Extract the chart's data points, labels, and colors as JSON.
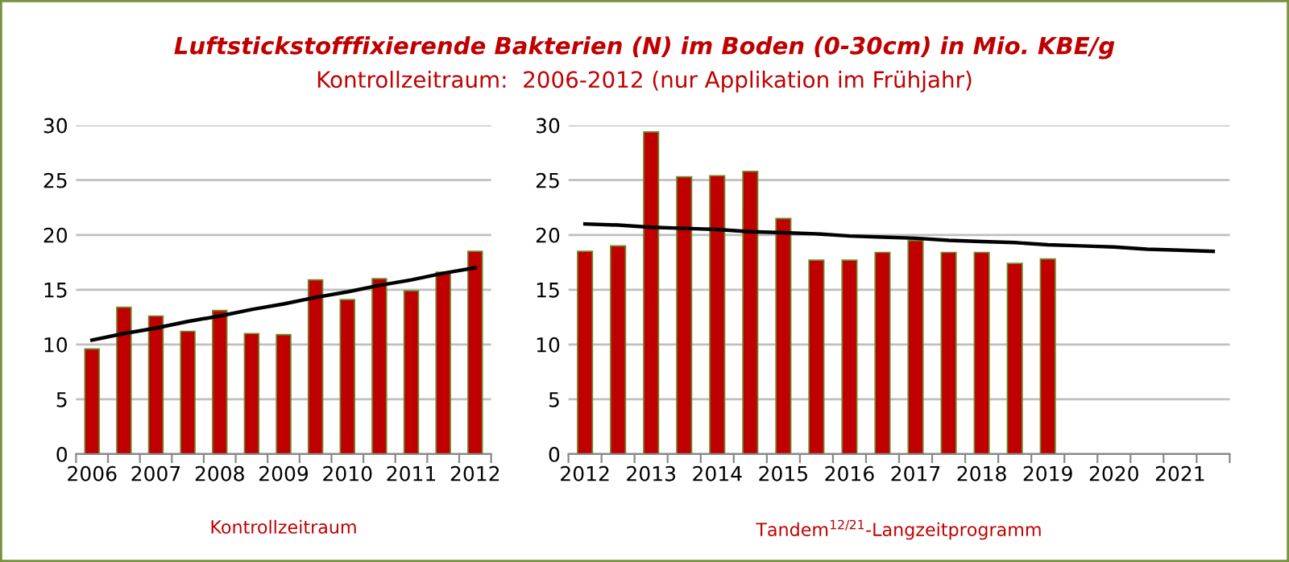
{
  "chart_data": [
    {
      "type": "bar",
      "title": "Luftstickstofffixierende Bakterien (N) im Boden (0-30cm) in Mio. KBE/g",
      "subtitle": "Kontrollzeitraum:  2006-2012 (nur Applikation im Frühjahr)",
      "xlabel": "Kontrollzeitraum",
      "categories": [
        "2006",
        null,
        "2007",
        null,
        "2008",
        null,
        "2009",
        null,
        "2010",
        null,
        "2011",
        null,
        "2012"
      ],
      "series": [
        {
          "color": "#c00000",
          "values": [
            9.6,
            13.4,
            12.6,
            11.2,
            13.1,
            11.0,
            10.9,
            15.9,
            14.1,
            16.0,
            14.9,
            16.6,
            18.5
          ]
        },
        {
          "type": "line",
          "color": "#000000",
          "values": [
            10.4,
            11.0,
            11.5,
            12.1,
            12.6,
            13.2,
            13.7,
            14.3,
            14.8,
            15.4,
            15.9,
            16.5,
            17.0
          ]
        }
      ],
      "ylim": [
        0,
        30
      ],
      "yticks": [
        0,
        5,
        10,
        15,
        20,
        25,
        30
      ],
      "grid": "y"
    },
    {
      "type": "bar",
      "xlabel": "Tandem$^{12/21}$-Langzeitprogramm",
      "categories": [
        "2012",
        null,
        "2013",
        null,
        "2014",
        null,
        "2015",
        null,
        "2016",
        null,
        "2017",
        null,
        "2018",
        null,
        "2019",
        null,
        "2020",
        null,
        "2021",
        null
      ],
      "series": [
        {
          "color": "#c00000",
          "values": [
            18.5,
            19.0,
            29.4,
            25.3,
            25.4,
            25.8,
            21.5,
            17.7,
            17.7,
            18.4,
            19.5,
            18.4,
            18.4,
            17.4,
            17.8,
            null,
            null,
            null,
            null,
            null
          ]
        },
        {
          "type": "line",
          "color": "#000000",
          "values": [
            21.0,
            20.9,
            20.7,
            20.6,
            20.5,
            20.3,
            20.2,
            20.1,
            19.9,
            19.8,
            19.7,
            19.5,
            19.4,
            19.3,
            19.1,
            19.0,
            18.9,
            18.7,
            18.6,
            18.5
          ]
        }
      ],
      "ylim": [
        0,
        30
      ],
      "yticks": [
        0,
        5,
        10,
        15,
        20,
        25,
        30
      ],
      "grid": "y"
    }
  ]
}
